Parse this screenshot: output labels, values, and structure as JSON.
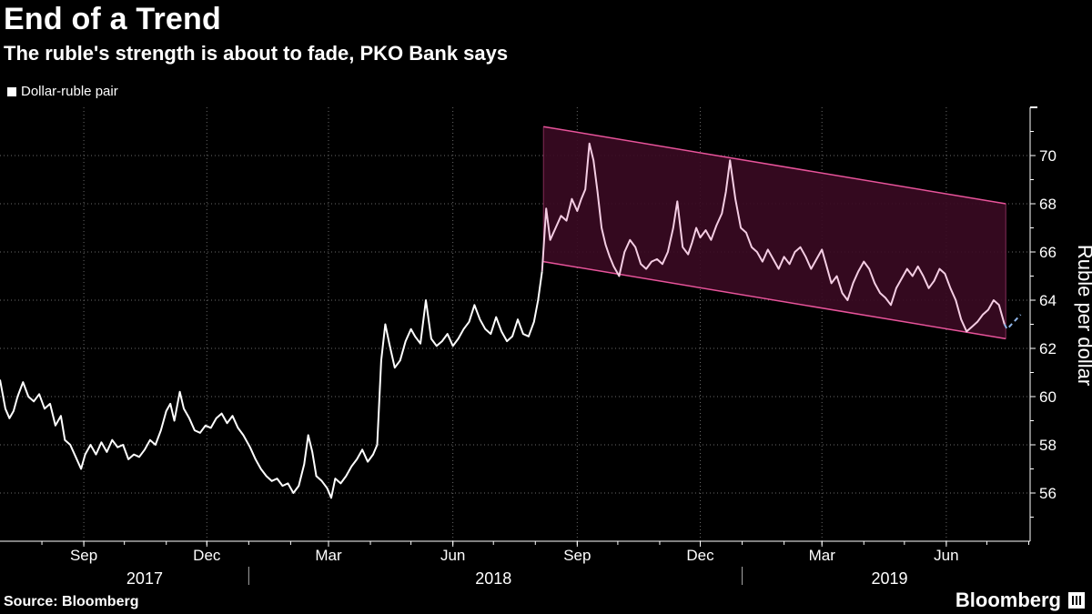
{
  "header": {
    "title": "End of a Trend",
    "subtitle": "The ruble's strength is about to fade, PKO Bank says"
  },
  "footer": {
    "source": "Source: Bloomberg",
    "brand": "Bloomberg"
  },
  "chart_data": {
    "type": "line",
    "title": "End of a Trend",
    "subtitle": "The ruble's strength is about to fade, PKO Bank says",
    "xlabel": "",
    "ylabel": "Ruble per dollar",
    "ylim": [
      54,
      72
    ],
    "yticks": [
      56,
      58,
      60,
      62,
      64,
      66,
      68,
      70
    ],
    "grid": true,
    "legend_position": "top-left",
    "x_tick_labels": [
      {
        "label": "Sep",
        "date": "2017-09-01"
      },
      {
        "label": "Dec",
        "date": "2017-12-01"
      },
      {
        "label": "Mar",
        "date": "2018-03-01"
      },
      {
        "label": "Jun",
        "date": "2018-06-01"
      },
      {
        "label": "Sep",
        "date": "2018-09-01"
      },
      {
        "label": "Dec",
        "date": "2018-12-01"
      },
      {
        "label": "Mar",
        "date": "2019-03-01"
      },
      {
        "label": "Jun",
        "date": "2019-06-01"
      }
    ],
    "year_labels": [
      "2017",
      "2018",
      "2019"
    ],
    "colors": {
      "series": "#ffffff",
      "channel_series": "#f4cde3",
      "channel_line": "#e8549b",
      "channel_fill": "#3a0a22",
      "forecast": "#8fb4e8"
    },
    "series": [
      {
        "name": "Dollar-ruble pair",
        "points": [
          [
            "2017-07-01",
            60.7
          ],
          [
            "2017-07-05",
            59.5
          ],
          [
            "2017-07-08",
            59.1
          ],
          [
            "2017-07-11",
            59.4
          ],
          [
            "2017-07-14",
            60.0
          ],
          [
            "2017-07-18",
            60.6
          ],
          [
            "2017-07-22",
            60.0
          ],
          [
            "2017-07-26",
            59.8
          ],
          [
            "2017-07-30",
            60.1
          ],
          [
            "2017-08-03",
            59.5
          ],
          [
            "2017-08-07",
            59.7
          ],
          [
            "2017-08-11",
            58.8
          ],
          [
            "2017-08-15",
            59.2
          ],
          [
            "2017-08-18",
            58.2
          ],
          [
            "2017-08-22",
            58.0
          ],
          [
            "2017-08-26",
            57.5
          ],
          [
            "2017-08-30",
            57.0
          ],
          [
            "2017-09-02",
            57.6
          ],
          [
            "2017-09-06",
            58.0
          ],
          [
            "2017-09-10",
            57.6
          ],
          [
            "2017-09-14",
            58.1
          ],
          [
            "2017-09-18",
            57.7
          ],
          [
            "2017-09-22",
            58.2
          ],
          [
            "2017-09-26",
            57.9
          ],
          [
            "2017-09-30",
            58.0
          ],
          [
            "2017-10-04",
            57.4
          ],
          [
            "2017-10-08",
            57.6
          ],
          [
            "2017-10-12",
            57.5
          ],
          [
            "2017-10-16",
            57.8
          ],
          [
            "2017-10-20",
            58.2
          ],
          [
            "2017-10-24",
            58.0
          ],
          [
            "2017-10-28",
            58.6
          ],
          [
            "2017-11-01",
            59.4
          ],
          [
            "2017-11-04",
            59.7
          ],
          [
            "2017-11-07",
            59.0
          ],
          [
            "2017-11-11",
            60.2
          ],
          [
            "2017-11-14",
            59.5
          ],
          [
            "2017-11-18",
            59.1
          ],
          [
            "2017-11-22",
            58.6
          ],
          [
            "2017-11-26",
            58.5
          ],
          [
            "2017-11-30",
            58.8
          ],
          [
            "2017-12-04",
            58.7
          ],
          [
            "2017-12-08",
            59.1
          ],
          [
            "2017-12-12",
            59.3
          ],
          [
            "2017-12-16",
            58.9
          ],
          [
            "2017-12-20",
            59.2
          ],
          [
            "2017-12-24",
            58.7
          ],
          [
            "2017-12-28",
            58.4
          ],
          [
            "2018-01-02",
            57.9
          ],
          [
            "2018-01-06",
            57.4
          ],
          [
            "2018-01-10",
            57.0
          ],
          [
            "2018-01-14",
            56.7
          ],
          [
            "2018-01-18",
            56.5
          ],
          [
            "2018-01-22",
            56.6
          ],
          [
            "2018-01-26",
            56.3
          ],
          [
            "2018-01-30",
            56.4
          ],
          [
            "2018-02-03",
            56.0
          ],
          [
            "2018-02-07",
            56.3
          ],
          [
            "2018-02-11",
            57.2
          ],
          [
            "2018-02-14",
            58.4
          ],
          [
            "2018-02-17",
            57.7
          ],
          [
            "2018-02-20",
            56.7
          ],
          [
            "2018-02-24",
            56.5
          ],
          [
            "2018-02-28",
            56.2
          ],
          [
            "2018-03-03",
            55.8
          ],
          [
            "2018-03-06",
            56.6
          ],
          [
            "2018-03-10",
            56.4
          ],
          [
            "2018-03-14",
            56.7
          ],
          [
            "2018-03-18",
            57.1
          ],
          [
            "2018-03-22",
            57.4
          ],
          [
            "2018-03-26",
            57.8
          ],
          [
            "2018-03-30",
            57.3
          ],
          [
            "2018-04-03",
            57.6
          ],
          [
            "2018-04-06",
            58.0
          ],
          [
            "2018-04-09",
            61.5
          ],
          [
            "2018-04-12",
            63.0
          ],
          [
            "2018-04-15",
            62.2
          ],
          [
            "2018-04-19",
            61.2
          ],
          [
            "2018-04-23",
            61.5
          ],
          [
            "2018-04-27",
            62.3
          ],
          [
            "2018-05-01",
            62.8
          ],
          [
            "2018-05-04",
            62.5
          ],
          [
            "2018-05-08",
            62.2
          ],
          [
            "2018-05-12",
            64.0
          ],
          [
            "2018-05-16",
            62.4
          ],
          [
            "2018-05-20",
            62.1
          ],
          [
            "2018-05-24",
            62.3
          ],
          [
            "2018-05-28",
            62.6
          ],
          [
            "2018-06-01",
            62.1
          ],
          [
            "2018-06-05",
            62.4
          ],
          [
            "2018-06-09",
            62.8
          ],
          [
            "2018-06-13",
            63.1
          ],
          [
            "2018-06-17",
            63.8
          ],
          [
            "2018-06-21",
            63.2
          ],
          [
            "2018-06-25",
            62.8
          ],
          [
            "2018-06-29",
            62.6
          ],
          [
            "2018-07-03",
            63.3
          ],
          [
            "2018-07-07",
            62.7
          ],
          [
            "2018-07-11",
            62.3
          ],
          [
            "2018-07-15",
            62.5
          ],
          [
            "2018-07-19",
            63.2
          ],
          [
            "2018-07-23",
            62.6
          ],
          [
            "2018-07-27",
            62.5
          ],
          [
            "2018-07-31",
            63.1
          ],
          [
            "2018-08-03",
            64.0
          ],
          [
            "2018-08-06",
            65.2
          ],
          [
            "2018-08-09",
            67.8
          ],
          [
            "2018-08-12",
            66.5
          ],
          [
            "2018-08-16",
            67.0
          ],
          [
            "2018-08-20",
            67.5
          ],
          [
            "2018-08-24",
            67.3
          ],
          [
            "2018-08-28",
            68.2
          ],
          [
            "2018-09-01",
            67.7
          ],
          [
            "2018-09-04",
            68.2
          ],
          [
            "2018-09-07",
            68.6
          ],
          [
            "2018-09-10",
            70.5
          ],
          [
            "2018-09-13",
            69.8
          ],
          [
            "2018-09-16",
            68.5
          ],
          [
            "2018-09-19",
            67.0
          ],
          [
            "2018-09-22",
            66.3
          ],
          [
            "2018-09-25",
            65.8
          ],
          [
            "2018-09-28",
            65.4
          ],
          [
            "2018-10-02",
            65.0
          ],
          [
            "2018-10-06",
            66.0
          ],
          [
            "2018-10-10",
            66.5
          ],
          [
            "2018-10-14",
            66.2
          ],
          [
            "2018-10-18",
            65.5
          ],
          [
            "2018-10-22",
            65.3
          ],
          [
            "2018-10-26",
            65.6
          ],
          [
            "2018-10-30",
            65.7
          ],
          [
            "2018-11-03",
            65.5
          ],
          [
            "2018-11-07",
            66.0
          ],
          [
            "2018-11-11",
            67.0
          ],
          [
            "2018-11-14",
            68.1
          ],
          [
            "2018-11-18",
            66.2
          ],
          [
            "2018-11-22",
            65.9
          ],
          [
            "2018-11-25",
            66.4
          ],
          [
            "2018-11-28",
            67.0
          ],
          [
            "2018-12-01",
            66.6
          ],
          [
            "2018-12-05",
            66.9
          ],
          [
            "2018-12-09",
            66.5
          ],
          [
            "2018-12-13",
            67.1
          ],
          [
            "2018-12-17",
            67.6
          ],
          [
            "2018-12-20",
            68.5
          ],
          [
            "2018-12-23",
            69.8
          ],
          [
            "2018-12-27",
            68.2
          ],
          [
            "2018-12-31",
            67.0
          ],
          [
            "2019-01-04",
            66.8
          ],
          [
            "2019-01-08",
            66.2
          ],
          [
            "2019-01-12",
            66.0
          ],
          [
            "2019-01-16",
            65.6
          ],
          [
            "2019-01-20",
            66.1
          ],
          [
            "2019-01-24",
            65.7
          ],
          [
            "2019-01-28",
            65.3
          ],
          [
            "2019-02-01",
            65.8
          ],
          [
            "2019-02-05",
            65.5
          ],
          [
            "2019-02-09",
            66.0
          ],
          [
            "2019-02-13",
            66.2
          ],
          [
            "2019-02-17",
            65.8
          ],
          [
            "2019-02-21",
            65.3
          ],
          [
            "2019-02-25",
            65.7
          ],
          [
            "2019-03-01",
            66.1
          ],
          [
            "2019-03-04",
            65.5
          ],
          [
            "2019-03-08",
            64.7
          ],
          [
            "2019-03-12",
            65.0
          ],
          [
            "2019-03-16",
            64.3
          ],
          [
            "2019-03-20",
            64.0
          ],
          [
            "2019-03-24",
            64.7
          ],
          [
            "2019-03-28",
            65.2
          ],
          [
            "2019-04-01",
            65.6
          ],
          [
            "2019-04-05",
            65.3
          ],
          [
            "2019-04-09",
            64.7
          ],
          [
            "2019-04-13",
            64.3
          ],
          [
            "2019-04-17",
            64.1
          ],
          [
            "2019-04-21",
            63.8
          ],
          [
            "2019-04-25",
            64.5
          ],
          [
            "2019-04-29",
            64.9
          ],
          [
            "2019-05-03",
            65.3
          ],
          [
            "2019-05-07",
            65.0
          ],
          [
            "2019-05-11",
            65.4
          ],
          [
            "2019-05-15",
            65.0
          ],
          [
            "2019-05-19",
            64.5
          ],
          [
            "2019-05-23",
            64.8
          ],
          [
            "2019-05-27",
            65.3
          ],
          [
            "2019-05-31",
            65.1
          ],
          [
            "2019-06-04",
            64.5
          ],
          [
            "2019-06-08",
            64.0
          ],
          [
            "2019-06-12",
            63.2
          ],
          [
            "2019-06-16",
            62.7
          ],
          [
            "2019-06-20",
            62.9
          ],
          [
            "2019-06-24",
            63.1
          ],
          [
            "2019-06-28",
            63.4
          ],
          [
            "2019-07-02",
            63.6
          ],
          [
            "2019-07-06",
            64.0
          ],
          [
            "2019-07-10",
            63.8
          ],
          [
            "2019-07-14",
            63.0
          ]
        ]
      }
    ],
    "channel": {
      "start_date": "2018-08-07",
      "end_date": "2019-07-15",
      "upper": [
        71.2,
        68.0
      ],
      "lower": [
        65.6,
        62.4
      ]
    },
    "forecast": {
      "points": [
        [
          "2019-07-16",
          62.8
        ],
        [
          "2019-07-26",
          63.4
        ]
      ]
    }
  }
}
